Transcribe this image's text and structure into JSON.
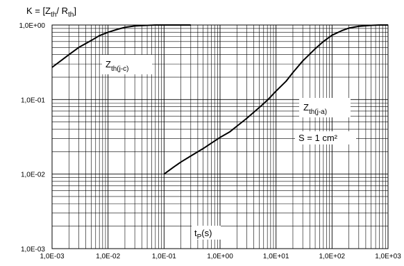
{
  "chart_data": {
    "type": "line",
    "title": "",
    "ylabel_parts": {
      "prefix": "K = [Z",
      "sub1": "th",
      "mid": "/ R",
      "sub2": "th",
      "suffix": "]"
    },
    "xlabel_parts": {
      "main": "t",
      "sub": "P",
      "suffix": "(s)"
    },
    "x_scale": "log",
    "y_scale": "log",
    "xlim": [
      0.001,
      1000
    ],
    "ylim": [
      0.001,
      1
    ],
    "x_ticks": [
      "1,0E-03",
      "1,0E-02",
      "1,0E-01",
      "1,0E+00",
      "1,0E+01",
      "1,0E+02",
      "1,0E+03"
    ],
    "y_ticks": [
      "1,0E+00",
      "1,0E-01",
      "1,0E-02",
      "1,0E-03"
    ],
    "grid": true,
    "series": [
      {
        "label_main": "Z",
        "label_sub": "th(j-c)",
        "x": [
          0.001,
          0.0015,
          0.002,
          0.003,
          0.005,
          0.007,
          0.01,
          0.015,
          0.02,
          0.03,
          0.05,
          0.07,
          0.1,
          0.15,
          0.2,
          0.3
        ],
        "y": [
          0.27,
          0.34,
          0.4,
          0.5,
          0.62,
          0.72,
          0.8,
          0.88,
          0.93,
          0.97,
          0.99,
          1.0,
          1.0,
          1.0,
          1.0,
          1.0
        ]
      },
      {
        "label_main": "Z",
        "label_sub": "th(j-a)",
        "x": [
          0.1,
          0.15,
          0.2,
          0.3,
          0.5,
          0.7,
          1,
          1.5,
          2,
          3,
          5,
          7,
          10,
          15,
          20,
          30,
          50,
          70,
          100,
          150,
          200,
          300,
          500,
          700,
          1000
        ],
        "y": [
          0.01,
          0.0125,
          0.0145,
          0.0175,
          0.022,
          0.026,
          0.031,
          0.037,
          0.044,
          0.056,
          0.078,
          0.098,
          0.13,
          0.175,
          0.23,
          0.33,
          0.48,
          0.6,
          0.73,
          0.84,
          0.91,
          0.96,
          0.99,
          1.0,
          1.0
        ]
      }
    ],
    "annotation": "S = 1 cm²"
  }
}
